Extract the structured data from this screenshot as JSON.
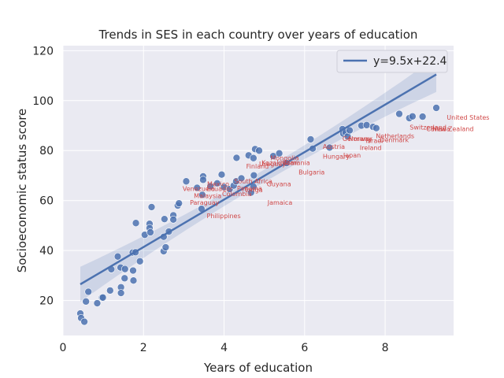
{
  "chart_data": {
    "type": "scatter",
    "title": "Trends in SES in each country over years of education",
    "xlabel": "Years of education",
    "ylabel": "Socioeconomic status score",
    "xlim": [
      0,
      9.7
    ],
    "ylim": [
      6,
      122
    ],
    "xticks": [
      0,
      2,
      4,
      6,
      8
    ],
    "yticks": [
      20,
      40,
      60,
      80,
      100,
      120
    ],
    "grid": true,
    "legend": {
      "position": "top-right",
      "entries": [
        "y=9.5x+22.4"
      ]
    },
    "regression": {
      "slope": 9.5,
      "intercept": 22.4,
      "x_range": [
        0.43,
        9.27
      ],
      "label": "y=9.5x+22.4"
    },
    "colors": {
      "points": "#4c72b0",
      "line": "#4c72b0",
      "band": "#4c72b0",
      "labels": "#d04848",
      "plot_bg": "#eaeaf2",
      "grid": "#ffffff"
    },
    "points": [
      [
        0.43,
        14.8
      ],
      [
        0.45,
        13.0
      ],
      [
        0.53,
        11.5
      ],
      [
        0.57,
        19.6
      ],
      [
        0.63,
        23.5
      ],
      [
        0.85,
        18.9
      ],
      [
        0.97,
        21.2
      ],
      [
        0.99,
        21.2
      ],
      [
        1.17,
        24.0
      ],
      [
        1.2,
        32.5
      ],
      [
        1.36,
        37.6
      ],
      [
        1.43,
        33.2
      ],
      [
        1.44,
        25.3
      ],
      [
        1.44,
        23.0
      ],
      [
        1.53,
        28.9
      ],
      [
        1.54,
        32.6
      ],
      [
        1.73,
        39.2
      ],
      [
        1.74,
        32.0
      ],
      [
        1.75,
        28.0
      ],
      [
        1.8,
        39.3
      ],
      [
        1.81,
        51.0
      ],
      [
        1.91,
        35.7
      ],
      [
        2.03,
        46.3
      ],
      [
        2.15,
        50.7
      ],
      [
        2.15,
        49.0
      ],
      [
        2.17,
        47.3
      ],
      [
        2.2,
        57.4
      ],
      [
        2.5,
        39.7
      ],
      [
        2.5,
        45.5
      ],
      [
        2.52,
        52.6
      ],
      [
        2.55,
        41.3
      ],
      [
        2.63,
        47.6
      ],
      [
        2.74,
        54.1
      ],
      [
        2.74,
        52.4
      ],
      [
        2.85,
        58.0
      ],
      [
        2.88,
        58.9
      ],
      [
        3.06,
        67.7
      ],
      [
        3.33,
        65.1
      ],
      [
        3.44,
        56.7
      ],
      [
        3.46,
        62.3
      ],
      [
        3.48,
        69.7
      ],
      [
        3.48,
        68.3
      ],
      [
        3.66,
        65.7
      ],
      [
        3.83,
        66.9
      ],
      [
        3.94,
        70.4
      ],
      [
        4.0,
        65.4
      ],
      [
        4.14,
        64.6
      ],
      [
        4.24,
        66.0
      ],
      [
        4.3,
        67.7
      ],
      [
        4.31,
        77.1
      ],
      [
        4.43,
        68.9
      ],
      [
        4.61,
        78.1
      ],
      [
        4.67,
        63.2
      ],
      [
        4.73,
        77.0
      ],
      [
        4.73,
        65.6
      ],
      [
        4.74,
        70.1
      ],
      [
        4.77,
        80.6
      ],
      [
        4.87,
        80.0
      ],
      [
        5.22,
        77.8
      ],
      [
        5.37,
        78.9
      ],
      [
        5.55,
        75.0
      ],
      [
        6.15,
        84.5
      ],
      [
        6.2,
        80.8
      ],
      [
        6.62,
        81.2
      ],
      [
        6.94,
        88.6
      ],
      [
        6.96,
        86.8
      ],
      [
        7.02,
        87.2
      ],
      [
        7.07,
        85.7
      ],
      [
        7.12,
        88.1
      ],
      [
        7.41,
        90.0
      ],
      [
        7.54,
        90.2
      ],
      [
        7.7,
        89.5
      ],
      [
        7.78,
        89.0
      ],
      [
        8.35,
        94.7
      ],
      [
        8.6,
        93.0
      ],
      [
        8.68,
        93.7
      ],
      [
        8.93,
        93.6
      ],
      [
        9.27,
        97.1
      ]
    ],
    "labels": [
      {
        "text": "United States",
        "x": 9.53,
        "y": 92.3
      },
      {
        "text": "Switzerland",
        "x": 8.61,
        "y": 88.5
      },
      {
        "text": "Canada",
        "x": 9.02,
        "y": 87.8
      },
      {
        "text": "New Zealand",
        "x": 9.17,
        "y": 87.8
      },
      {
        "text": "Netherlands",
        "x": 7.77,
        "y": 84.9
      },
      {
        "text": "Denmark",
        "x": 7.87,
        "y": 83.4
      },
      {
        "text": "Germany",
        "x": 6.94,
        "y": 83.8
      },
      {
        "text": "Norway",
        "x": 7.09,
        "y": 83.8
      },
      {
        "text": "Israel",
        "x": 7.52,
        "y": 83.0
      },
      {
        "text": "Japan",
        "x": 6.96,
        "y": 77.3
      },
      {
        "text": "Ireland",
        "x": 7.37,
        "y": 80.3
      },
      {
        "text": "Austria",
        "x": 6.45,
        "y": 80.7
      },
      {
        "text": "Hungary",
        "x": 6.45,
        "y": 76.7
      },
      {
        "text": "Bulgaria",
        "x": 5.85,
        "y": 70.5
      },
      {
        "text": "Mongolia",
        "x": 5.15,
        "y": 76.1
      },
      {
        "text": "Kazakhstan",
        "x": 4.93,
        "y": 74.3
      },
      {
        "text": "Romania",
        "x": 5.45,
        "y": 74.3
      },
      {
        "text": "Finland",
        "x": 4.55,
        "y": 72.9
      },
      {
        "text": "Uruguay",
        "x": 4.87,
        "y": 73.8
      },
      {
        "text": "South Africa",
        "x": 4.25,
        "y": 66.8
      },
      {
        "text": "Mexico",
        "x": 3.58,
        "y": 65.7
      },
      {
        "text": "Guyana",
        "x": 5.06,
        "y": 65.8
      },
      {
        "text": "Panama",
        "x": 4.32,
        "y": 64.0
      },
      {
        "text": "Venezuela",
        "x": 2.97,
        "y": 63.9
      },
      {
        "text": "Ecuador",
        "x": 3.57,
        "y": 63.9
      },
      {
        "text": "Malaysia",
        "x": 3.25,
        "y": 61.0
      },
      {
        "text": "Colombia",
        "x": 3.95,
        "y": 61.8
      },
      {
        "text": "Tonga",
        "x": 4.5,
        "y": 63.3
      },
      {
        "text": "Paraguay",
        "x": 3.15,
        "y": 58.4
      },
      {
        "text": "Jamaica",
        "x": 5.08,
        "y": 58.4
      },
      {
        "text": "Philippines",
        "x": 3.57,
        "y": 52.9
      }
    ]
  }
}
